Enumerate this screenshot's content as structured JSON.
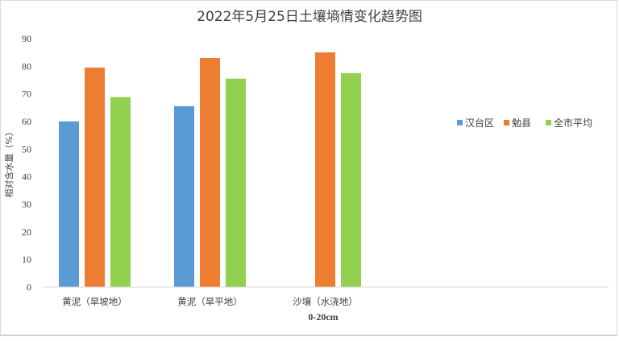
{
  "chart_data": {
    "type": "bar",
    "title": "2022年5月25日土壤墒情变化趋势图",
    "xlabel": "0-20cm",
    "ylabel": "相对含水量（%）",
    "ylim": [
      0,
      90
    ],
    "yticks": [
      0,
      10,
      20,
      30,
      40,
      50,
      60,
      70,
      80,
      90
    ],
    "categories": [
      "黄泥（旱坡地）",
      "黄泥（旱平地）",
      "沙壤（水浇地）"
    ],
    "series": [
      {
        "name": "汉台区",
        "color": "#5b9bd5",
        "values": [
          60,
          65.5,
          null
        ]
      },
      {
        "name": "勉县",
        "color": "#ed7d31",
        "values": [
          79.5,
          83,
          85
        ]
      },
      {
        "name": "全市平均",
        "color": "#92d050",
        "values": [
          68.8,
          75.5,
          77.5
        ]
      }
    ],
    "grid": false,
    "legend_position": "right"
  }
}
